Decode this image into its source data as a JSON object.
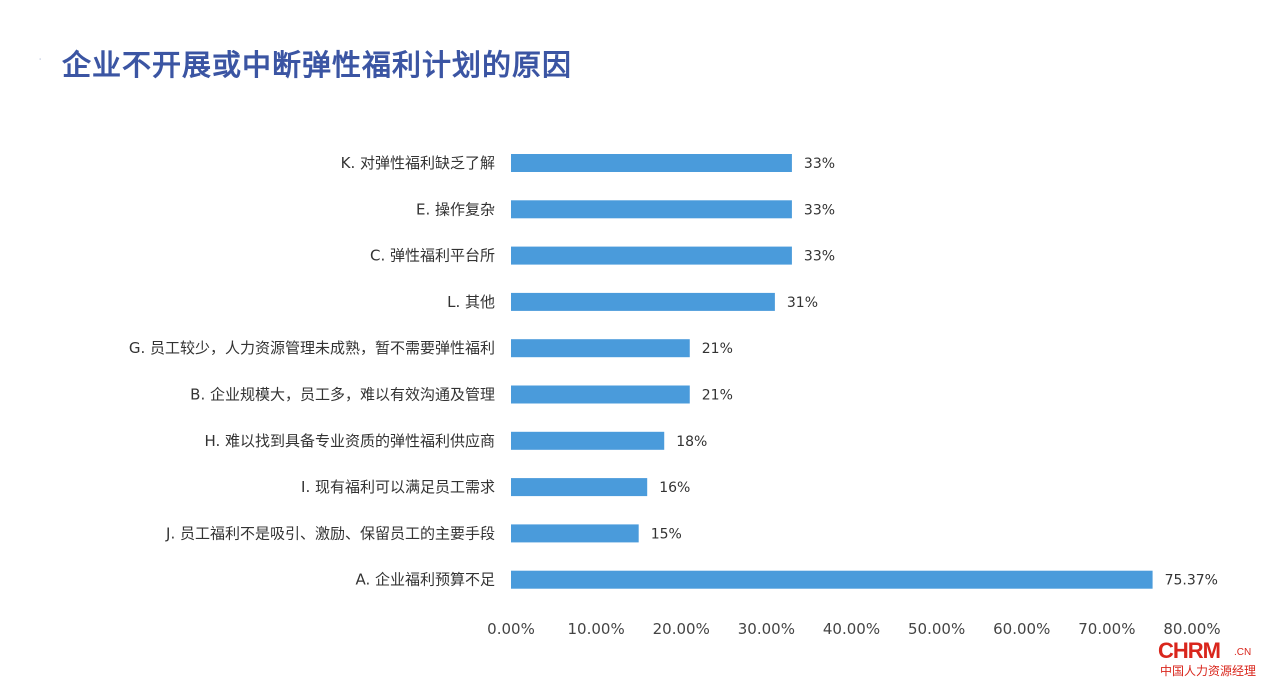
{
  "header": {
    "title": "企业不开展或中断弹性福利计划的原因"
  },
  "logo": {
    "main": "CHRM",
    "suffix": ".CN",
    "subtitle": "中国人力资源经理"
  },
  "colors": {
    "bar": "#4A9BDB",
    "title": "#3B55A3",
    "logo": "#d9261c"
  },
  "chart_data": {
    "type": "bar",
    "orientation": "horizontal",
    "title": "企业不开展或中断弹性福利计划的原因",
    "xlabel": "",
    "ylabel": "",
    "xlim": [
      0,
      80
    ],
    "grid": false,
    "ticks": [
      "0.00%",
      "10.00%",
      "20.00%",
      "30.00%",
      "40.00%",
      "50.00%",
      "60.00%",
      "70.00%",
      "80.00%"
    ],
    "categories": [
      "K. 对弹性福利缺乏了解",
      "E. 操作复杂",
      "C. 弹性福利平台所",
      "L. 其他",
      "G. 员工较少，人力资源管理未成熟，暂不需要弹性福利",
      "B. 企业规模大，员工多，难以有效沟通及管理",
      "H. 难以找到具备专业资质的弹性福利供应商",
      "I. 现有福利可以满足员工需求",
      "J. 员工福利不是吸引、激励、保留员工的主要手段",
      "A. 企业福利预算不足"
    ],
    "values": [
      33,
      33,
      33,
      31,
      21,
      21,
      18,
      16,
      15,
      75.37
    ],
    "value_labels": [
      "33%",
      "33%",
      "33%",
      "31%",
      "21%",
      "21%",
      "18%",
      "16%",
      "15%",
      "75.37%"
    ]
  }
}
